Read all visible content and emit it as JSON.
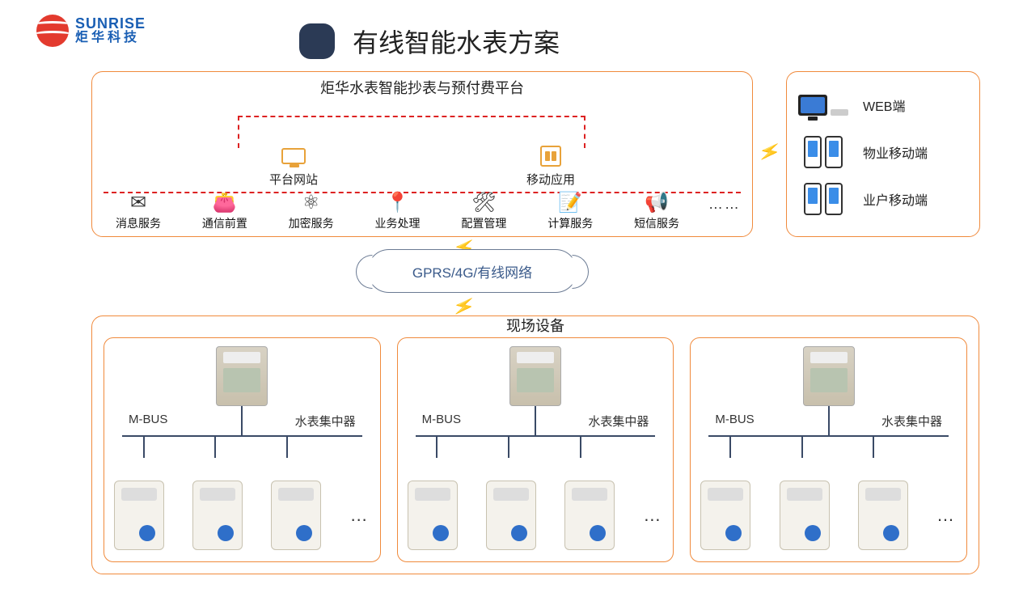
{
  "logo": {
    "en": "SUNRISE",
    "cn": "炬华科技"
  },
  "title": "有线智能水表方案",
  "platform": {
    "title": "炬华水表智能抄表与预付费平台",
    "apps": [
      {
        "label": "平台网站"
      },
      {
        "label": "移动应用"
      }
    ],
    "services": [
      {
        "icon": "✉",
        "label": "消息服务"
      },
      {
        "icon": "👛",
        "label": "通信前置"
      },
      {
        "icon": "⚛",
        "label": "加密服务"
      },
      {
        "icon": "📍",
        "label": "业务处理"
      },
      {
        "icon": "🛠",
        "label": "配置管理"
      },
      {
        "icon": "📝",
        "label": "计算服务"
      },
      {
        "icon": "📢",
        "label": "短信服务"
      }
    ],
    "ellipsis": "……"
  },
  "clients": [
    {
      "label": "WEB端",
      "type": "pc"
    },
    {
      "label": "物业移动端",
      "type": "phone"
    },
    {
      "label": "业户移动端",
      "type": "phone"
    }
  ],
  "network_label": "GPRS/4G/有线网络",
  "field": {
    "title": "现场设备",
    "bus_label": "M-BUS",
    "concentrator_label": "水表集中器",
    "cluster_count": 3,
    "meter_ellipsis": "…"
  },
  "colors": {
    "border": "#f08a3c",
    "dash_red": "#d22",
    "bus": "#3a4a66",
    "title_badge": "#2b3a55",
    "logo_red": "#e33a2e",
    "logo_blue": "#1a5fb4"
  }
}
